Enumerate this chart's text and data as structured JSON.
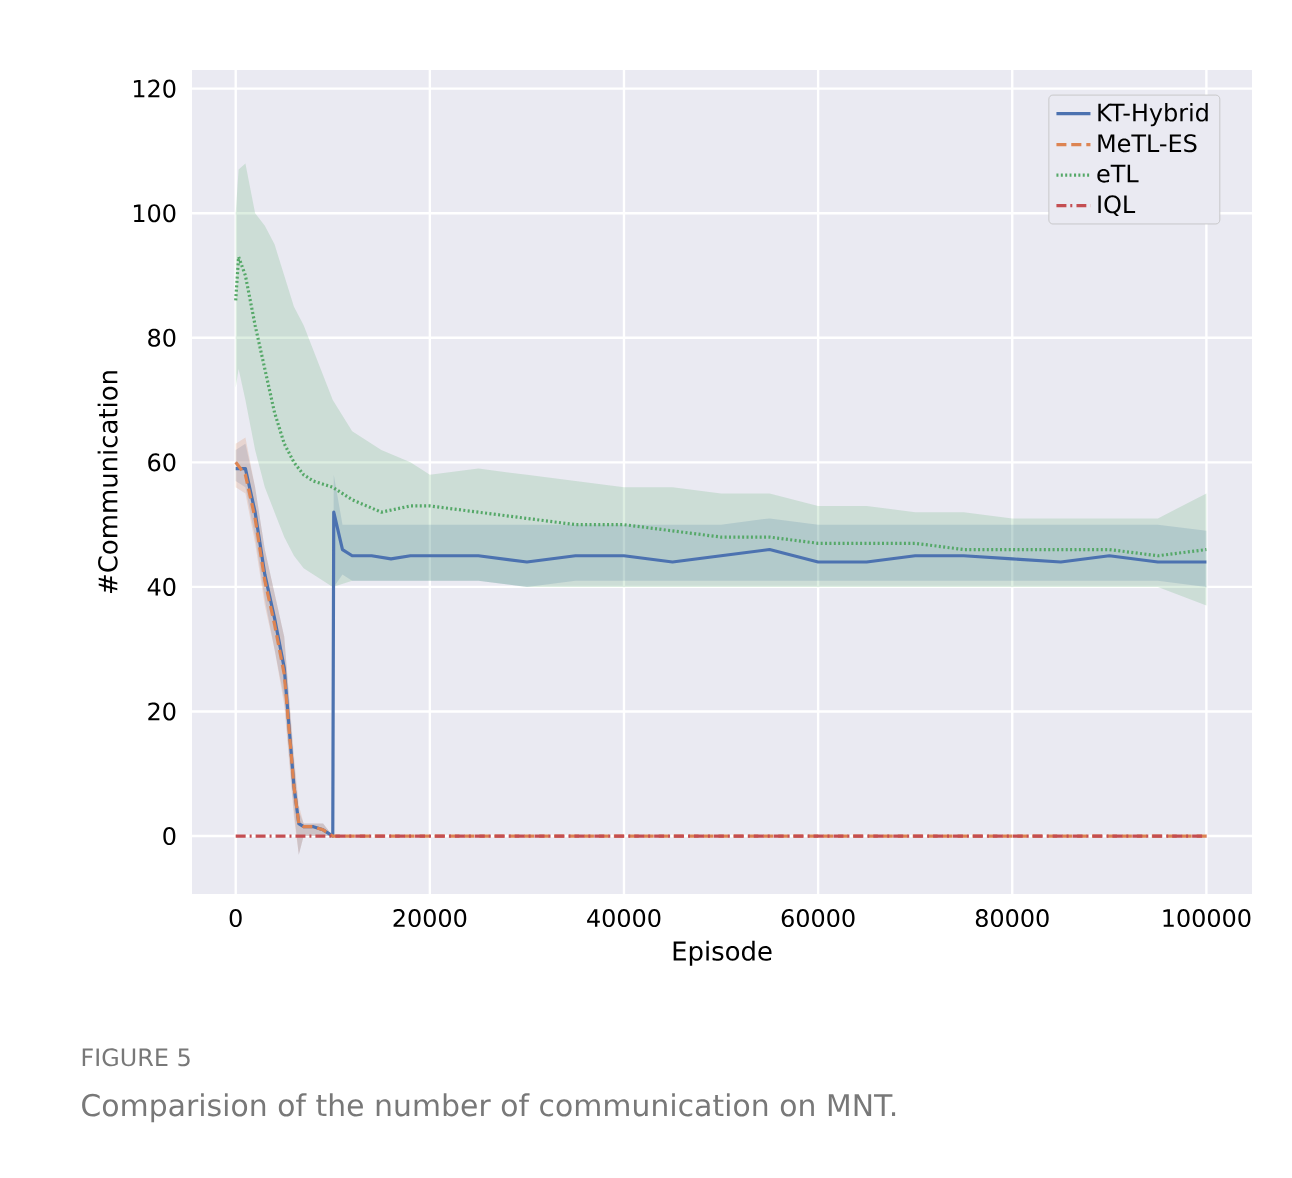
{
  "chart_data": {
    "type": "line",
    "xlabel": "Episode",
    "ylabel": "#Communication",
    "annotations": [
      "FIGURE 5",
      "Comparision of the number of communication on MNT."
    ],
    "xlim": [
      -4500,
      104700
    ],
    "ylim": [
      -9.3,
      123
    ],
    "xticks": [
      0,
      20000,
      40000,
      60000,
      80000,
      100000
    ],
    "yticks": [
      0,
      20,
      40,
      60,
      80,
      100,
      120
    ],
    "grid": true,
    "legend": "top right",
    "series": [
      {
        "name": "KT-Hybrid",
        "color": "#4c72b0",
        "line_style": "solid",
        "x": [
          0,
          1000,
          2000,
          3000,
          4000,
          5000,
          6000,
          6500,
          7000,
          8000,
          9000,
          10000,
          10100,
          11000,
          12000,
          14000,
          16000,
          18000,
          20000,
          25000,
          30000,
          35000,
          40000,
          45000,
          50000,
          55000,
          60000,
          65000,
          70000,
          75000,
          80000,
          85000,
          90000,
          95000,
          100000
        ],
        "values": [
          59,
          59,
          52,
          42,
          35,
          27,
          8,
          2,
          1.5,
          1.5,
          1,
          0,
          52,
          46,
          45,
          45,
          44.5,
          45,
          45,
          45,
          44,
          45,
          45,
          44,
          45,
          46,
          44,
          44,
          45,
          45,
          44.5,
          44,
          45,
          44,
          44
        ],
        "lower": [
          57,
          56,
          48,
          38,
          30,
          22,
          4,
          -3,
          0,
          0,
          0,
          0,
          40,
          42,
          41,
          41,
          41,
          41,
          41,
          41,
          40,
          41,
          41,
          41,
          41,
          41,
          41,
          41,
          41,
          41,
          41,
          41,
          41,
          41,
          40
        ],
        "upper": [
          62,
          63,
          56,
          46,
          39,
          32,
          12,
          4,
          2,
          2,
          2,
          0,
          58,
          50,
          50,
          50,
          50,
          50,
          50,
          50,
          50,
          50,
          50,
          50,
          50,
          51,
          50,
          50,
          50,
          50,
          50,
          50,
          50,
          50,
          49
        ]
      },
      {
        "name": "MeTL-ES",
        "color": "#dd8452",
        "line_style": "dashed",
        "x": [
          0,
          1000,
          2000,
          3000,
          4000,
          5000,
          6000,
          6500,
          7000,
          8000,
          9000,
          10000,
          20000,
          40000,
          60000,
          80000,
          100000
        ],
        "values": [
          60,
          58,
          51,
          41,
          34,
          26,
          8,
          2,
          1.5,
          1.5,
          1,
          0,
          0,
          0,
          0,
          0,
          0
        ],
        "lower": [
          56,
          55,
          47,
          37,
          30,
          21,
          3,
          -3,
          0,
          0,
          0,
          0,
          0,
          0,
          0,
          0,
          0
        ],
        "upper": [
          63,
          64,
          56,
          46,
          39,
          32,
          13,
          5,
          2,
          2,
          2,
          0,
          0,
          0,
          0,
          0,
          0
        ]
      },
      {
        "name": "eTL",
        "color": "#55a868",
        "line_style": "dotted",
        "x": [
          0,
          300,
          1000,
          2000,
          3000,
          4000,
          5000,
          6000,
          7000,
          8000,
          10000,
          12000,
          15000,
          18000,
          20000,
          25000,
          30000,
          35000,
          40000,
          45000,
          50000,
          55000,
          60000,
          65000,
          70000,
          75000,
          80000,
          85000,
          90000,
          95000,
          100000
        ],
        "values": [
          86,
          93,
          90,
          82,
          75,
          68,
          63,
          60,
          58,
          57,
          56,
          54,
          52,
          53,
          53,
          52,
          51,
          50,
          50,
          49,
          48,
          48,
          47,
          47,
          47,
          46,
          46,
          46,
          46,
          45,
          46
        ],
        "lower": [
          72,
          75,
          70,
          62,
          56,
          52,
          48,
          45,
          43,
          42,
          40,
          41,
          41,
          41,
          41,
          41,
          40,
          40,
          40,
          40,
          40,
          40,
          40,
          40,
          40,
          40,
          40,
          40,
          40,
          40,
          37
        ],
        "upper": [
          100,
          107,
          108,
          100,
          98,
          95,
          90,
          85,
          82,
          78,
          70,
          65,
          62,
          60,
          58,
          59,
          58,
          57,
          56,
          56,
          55,
          55,
          53,
          53,
          52,
          52,
          51,
          51,
          51,
          51,
          55
        ]
      },
      {
        "name": "IQL",
        "color": "#c44e52",
        "line_style": "dashdot",
        "x": [
          0,
          100000
        ],
        "values": [
          0,
          0
        ]
      }
    ]
  }
}
